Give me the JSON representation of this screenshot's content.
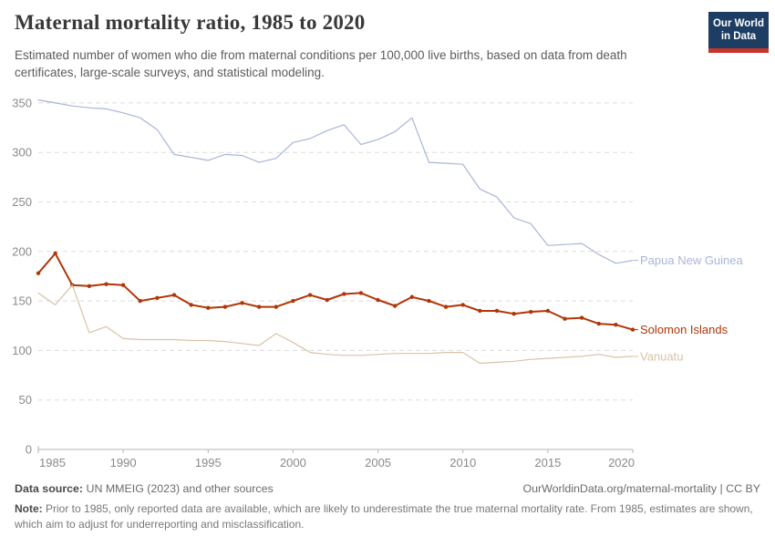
{
  "header": {
    "title": "Maternal mortality ratio, 1985 to 2020",
    "subtitle": "Estimated number of women who die from maternal conditions per 100,000 live births, based on data from death certificates, large-scale surveys, and statistical modeling.",
    "logo": {
      "line1": "Our World",
      "line2": "in Data",
      "bg_color": "#1d3d63",
      "stripe_color": "#c5372c"
    }
  },
  "chart_data": {
    "type": "line",
    "title": "Maternal mortality ratio, 1985 to 2020",
    "xlabel": "",
    "ylabel": "",
    "x_range": [
      1985,
      2020
    ],
    "ylim": [
      0,
      360
    ],
    "grid": "horizontal-dashed",
    "legend_position": "right-end-labels",
    "xticks": [
      1985,
      1990,
      1995,
      2000,
      2005,
      2010,
      2015,
      2020
    ],
    "yticks": [
      0,
      50,
      100,
      150,
      200,
      250,
      300,
      350
    ],
    "x": [
      1985,
      1986,
      1987,
      1988,
      1989,
      1990,
      1991,
      1992,
      1993,
      1994,
      1995,
      1996,
      1997,
      1998,
      1999,
      2000,
      2001,
      2002,
      2003,
      2004,
      2005,
      2006,
      2007,
      2008,
      2009,
      2010,
      2011,
      2012,
      2013,
      2014,
      2015,
      2016,
      2017,
      2018,
      2019,
      2020
    ],
    "series": [
      {
        "name": "Papua New Guinea",
        "color": "#a8b6d6",
        "marker": false,
        "values": [
          353,
          350,
          347,
          345,
          344,
          340,
          335,
          323,
          298,
          295,
          292,
          298,
          297,
          290,
          294,
          310,
          314,
          322,
          328,
          308,
          313,
          321,
          335,
          290,
          289,
          288,
          263,
          255,
          234,
          228,
          206,
          207,
          208,
          197,
          188,
          191
        ]
      },
      {
        "name": "Solomon Islands",
        "color": "#b13507",
        "marker": true,
        "values": [
          178,
          198,
          166,
          165,
          167,
          166,
          150,
          153,
          156,
          146,
          143,
          144,
          148,
          144,
          144,
          150,
          156,
          151,
          157,
          158,
          151,
          145,
          154,
          150,
          144,
          146,
          140,
          140,
          137,
          139,
          140,
          132,
          133,
          127,
          126,
          121
        ]
      },
      {
        "name": "Vanuatu",
        "color": "#d7c3a7",
        "marker": false,
        "values": [
          158,
          146,
          166,
          118,
          124,
          112,
          111,
          111,
          111,
          110,
          110,
          109,
          107,
          105,
          117,
          108,
          98,
          96,
          95,
          95,
          96,
          97,
          97,
          97,
          98,
          98,
          87,
          88,
          89,
          91,
          92,
          93,
          94,
          96,
          93,
          94
        ]
      }
    ]
  },
  "footer": {
    "source_label": "Data source:",
    "source_text": " UN MMEIG (2023) and other sources",
    "link_text": "OurWorldinData.org/maternal-mortality | CC BY",
    "note_label": "Note:",
    "note_text": " Prior to 1985, only reported data are available, which are likely to underestimate the true maternal mortality rate. From 1985, estimates are shown, which aim to adjust for underreporting and misclassification."
  }
}
